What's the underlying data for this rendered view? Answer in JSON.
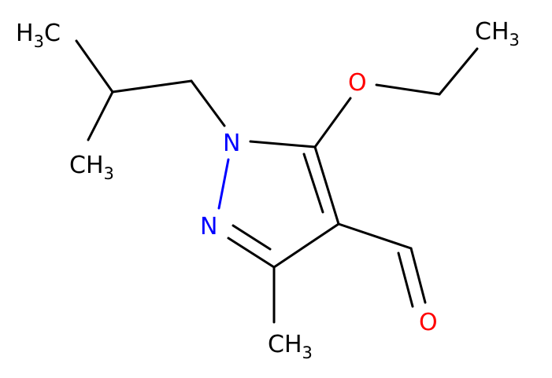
{
  "nodes": [
    {
      "label": [
        "H",
        "3",
        "C"
      ]
    },
    {
      "label": [
        "CH",
        "3"
      ]
    },
    {
      "label": [
        "N"
      ]
    },
    {
      "label": [
        "N"
      ]
    },
    {
      "label": [
        "O"
      ]
    },
    {
      "label": [
        "CH",
        "3"
      ]
    },
    {
      "label": [
        "O"
      ]
    },
    {
      "label": [
        "CH",
        "3"
      ]
    }
  ]
}
